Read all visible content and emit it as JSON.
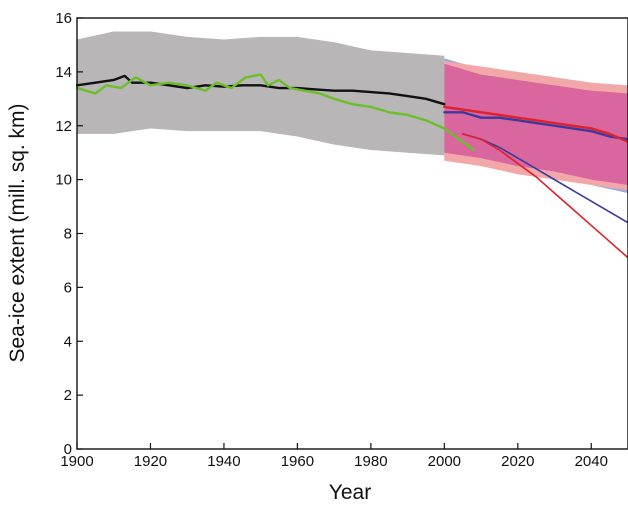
{
  "chart_data": {
    "type": "line",
    "title": "",
    "xlabel": "Year",
    "ylabel": "Sea-ice extent  (mill. sq. km)",
    "xlim": [
      1900,
      2050
    ],
    "ylim": [
      0,
      16
    ],
    "x_ticks": [
      1900,
      1920,
      1940,
      1960,
      1980,
      2000,
      2020,
      2040
    ],
    "y_ticks": [
      0,
      2,
      4,
      6,
      8,
      10,
      12,
      14,
      16
    ],
    "x_tick_labels": [
      "1900",
      "1920",
      "1940",
      "1960",
      "1980",
      "2000",
      "2020",
      "2040"
    ],
    "y_tick_labels": [
      "0",
      "2",
      "4",
      "6",
      "8",
      "10",
      "12",
      "14",
      "16"
    ],
    "grid": false,
    "legend": "none",
    "bands": [
      {
        "color": "#b8b6b6",
        "x": [
          1900,
          1910,
          1920,
          1930,
          1940,
          1950,
          1960,
          1970,
          1980,
          1990,
          2000
        ],
        "upper": [
          15.2,
          15.5,
          15.5,
          15.3,
          15.2,
          15.3,
          15.3,
          15.1,
          14.8,
          14.7,
          14.6
        ],
        "lower": [
          11.7,
          11.7,
          11.9,
          11.8,
          11.8,
          11.8,
          11.6,
          11.3,
          11.1,
          11.0,
          10.9
        ]
      },
      {
        "color": "#9aa8e0",
        "x": [
          2000,
          2010,
          2020,
          2030,
          2040,
          2050
        ],
        "upper": [
          14.5,
          14.1,
          13.8,
          13.6,
          13.4,
          13.3
        ],
        "lower": [
          10.8,
          10.6,
          10.3,
          10.1,
          9.8,
          9.5
        ]
      },
      {
        "color": "#f2a8a8",
        "x": [
          2000,
          2010,
          2020,
          2030,
          2040,
          2050
        ],
        "upper": [
          14.4,
          14.2,
          14.0,
          13.8,
          13.6,
          13.5
        ],
        "lower": [
          10.7,
          10.5,
          10.2,
          10.0,
          9.8,
          9.6
        ]
      },
      {
        "color": "#d9669e",
        "x": [
          2000,
          2010,
          2020,
          2030,
          2040,
          2050
        ],
        "upper": [
          14.3,
          13.9,
          13.7,
          13.5,
          13.3,
          13.2
        ],
        "lower": [
          11.0,
          10.8,
          10.5,
          10.3,
          10.0,
          9.8
        ]
      }
    ],
    "series": [
      {
        "color": "#111111",
        "x": [
          1900,
          1905,
          1910,
          1913,
          1915,
          1920,
          1925,
          1930,
          1935,
          1940,
          1945,
          1950,
          1955,
          1960,
          1965,
          1970,
          1975,
          1980,
          1985,
          1990,
          1995,
          2000
        ],
        "y": [
          13.5,
          13.6,
          13.7,
          13.85,
          13.6,
          13.6,
          13.5,
          13.4,
          13.5,
          13.45,
          13.5,
          13.5,
          13.4,
          13.4,
          13.35,
          13.3,
          13.3,
          13.25,
          13.2,
          13.1,
          13.0,
          12.8
        ]
      },
      {
        "color": "#6cbf2a",
        "x": [
          1900,
          1905,
          1908,
          1912,
          1916,
          1920,
          1925,
          1930,
          1935,
          1938,
          1942,
          1946,
          1950,
          1952,
          1955,
          1958,
          1962,
          1966,
          1970,
          1975,
          1980,
          1985,
          1990,
          1995,
          2000,
          2003,
          2006,
          2008
        ],
        "y": [
          13.4,
          13.2,
          13.5,
          13.4,
          13.8,
          13.5,
          13.6,
          13.5,
          13.3,
          13.6,
          13.4,
          13.8,
          13.9,
          13.5,
          13.7,
          13.4,
          13.3,
          13.2,
          13.0,
          12.8,
          12.7,
          12.5,
          12.4,
          12.2,
          11.9,
          11.6,
          11.3,
          11.1
        ]
      },
      {
        "color": "#3a3a9e",
        "x": [
          2000,
          2005,
          2010,
          2015,
          2020,
          2025,
          2030,
          2035,
          2040,
          2045,
          2050
        ],
        "y": [
          12.5,
          12.5,
          12.3,
          12.3,
          12.2,
          12.1,
          12.0,
          11.9,
          11.8,
          11.6,
          11.5
        ]
      },
      {
        "color": "#e0202a",
        "x": [
          2000,
          2005,
          2010,
          2015,
          2020,
          2025,
          2030,
          2035,
          2040,
          2045,
          2050
        ],
        "y": [
          12.7,
          12.6,
          12.5,
          12.4,
          12.3,
          12.2,
          12.1,
          12.0,
          11.9,
          11.7,
          11.4
        ]
      },
      {
        "color": "#3a3a9e",
        "x": [
          2005,
          2010,
          2015,
          2020,
          2025,
          2030,
          2035,
          2040,
          2045,
          2050
        ],
        "y": [
          11.7,
          11.5,
          11.2,
          10.8,
          10.4,
          10.0,
          9.6,
          9.2,
          8.8,
          8.4
        ]
      },
      {
        "color": "#e0202a",
        "x": [
          2005,
          2010,
          2015,
          2020,
          2025,
          2030,
          2035,
          2040,
          2045,
          2050
        ],
        "y": [
          11.7,
          11.5,
          11.1,
          10.6,
          10.1,
          9.5,
          8.9,
          8.3,
          7.7,
          7.1
        ]
      }
    ]
  }
}
